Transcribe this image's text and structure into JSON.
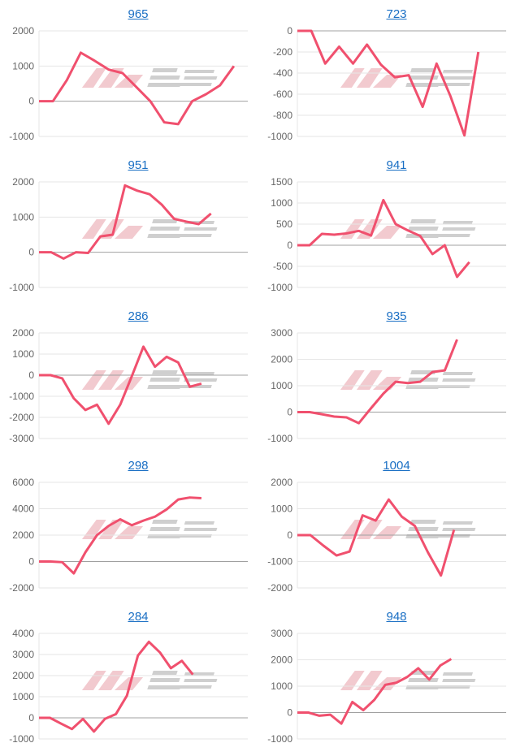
{
  "line_color": "#f0506e",
  "watermark": "みんかぶ",
  "chart_data": [
    {
      "type": "line",
      "title": "965",
      "yticks": [
        2000,
        1000,
        0,
        -1000
      ],
      "ylim": [
        -1000,
        2000
      ],
      "xlim": [
        0,
        15
      ],
      "values": [
        0,
        0,
        600,
        1380,
        1150,
        900,
        800,
        400,
        0,
        -600,
        -650,
        0,
        200,
        450,
        1000
      ]
    },
    {
      "type": "line",
      "title": "723",
      "yticks": [
        0,
        -200,
        -400,
        -600,
        -800,
        -1000
      ],
      "ylim": [
        -1000,
        0
      ],
      "xlim": [
        0,
        15
      ],
      "values": [
        0,
        0,
        -310,
        -150,
        -310,
        -130,
        -320,
        -440,
        -420,
        -720,
        -310,
        -620,
        -990,
        -200
      ]
    },
    {
      "type": "line",
      "title": "951",
      "yticks": [
        2000,
        1000,
        0,
        -1000
      ],
      "ylim": [
        -1000,
        2000
      ],
      "xlim": [
        0,
        17
      ],
      "values": [
        0,
        0,
        -180,
        0,
        -20,
        450,
        500,
        1900,
        1750,
        1650,
        1350,
        950,
        870,
        800,
        1100
      ]
    },
    {
      "type": "line",
      "title": "941",
      "yticks": [
        1500,
        1000,
        500,
        0,
        -500,
        -1000
      ],
      "ylim": [
        -1000,
        1500
      ],
      "xlim": [
        0,
        17
      ],
      "values": [
        0,
        0,
        270,
        250,
        280,
        340,
        230,
        1070,
        500,
        350,
        220,
        -210,
        0,
        -750,
        -400
      ]
    },
    {
      "type": "line",
      "title": "286",
      "yticks": [
        2000,
        1000,
        0,
        -1000,
        -2000,
        -3000
      ],
      "ylim": [
        -3000,
        2000
      ],
      "xlim": [
        0,
        18
      ],
      "values": [
        0,
        0,
        -150,
        -1100,
        -1650,
        -1400,
        -2300,
        -1400,
        -50,
        1350,
        400,
        870,
        600,
        -550,
        -400
      ]
    },
    {
      "type": "line",
      "title": "935",
      "yticks": [
        3000,
        2000,
        1000,
        0,
        -1000
      ],
      "ylim": [
        -1000,
        3000
      ],
      "xlim": [
        0,
        17
      ],
      "values": [
        0,
        0,
        -80,
        -170,
        -200,
        -420,
        150,
        700,
        1150,
        1100,
        1150,
        1520,
        1580,
        2750
      ]
    },
    {
      "type": "line",
      "title": "298",
      "yticks": [
        6000,
        4000,
        2000,
        0,
        -2000
      ],
      "ylim": [
        -2000,
        6000
      ],
      "xlim": [
        0,
        18
      ],
      "values": [
        0,
        0,
        -50,
        -900,
        700,
        2000,
        2700,
        3200,
        2750,
        3100,
        3400,
        3950,
        4700,
        4850,
        4800
      ]
    },
    {
      "type": "line",
      "title": "1004",
      "yticks": [
        2000,
        1000,
        0,
        -1000,
        -2000
      ],
      "ylim": [
        -2000,
        2000
      ],
      "xlim": [
        0,
        16
      ],
      "values": [
        0,
        0,
        -400,
        -770,
        -620,
        750,
        550,
        1350,
        700,
        350,
        -650,
        -1530,
        200
      ]
    },
    {
      "type": "line",
      "title": "284",
      "yticks": [
        4000,
        3000,
        2000,
        1000,
        0,
        -1000
      ],
      "ylim": [
        -1000,
        4000
      ],
      "xlim": [
        0,
        19
      ],
      "values": [
        0,
        0,
        -270,
        -530,
        -50,
        -650,
        -50,
        180,
        1050,
        2950,
        3600,
        3100,
        2350,
        2700,
        2050
      ]
    },
    {
      "type": "line",
      "title": "948",
      "yticks": [
        3000,
        2000,
        1000,
        0,
        -1000
      ],
      "ylim": [
        -1000,
        3000
      ],
      "xlim": [
        0,
        19
      ],
      "values": [
        0,
        0,
        -120,
        -80,
        -420,
        400,
        90,
        480,
        1050,
        1130,
        1350,
        1680,
        1250,
        1780,
        2030
      ]
    }
  ]
}
